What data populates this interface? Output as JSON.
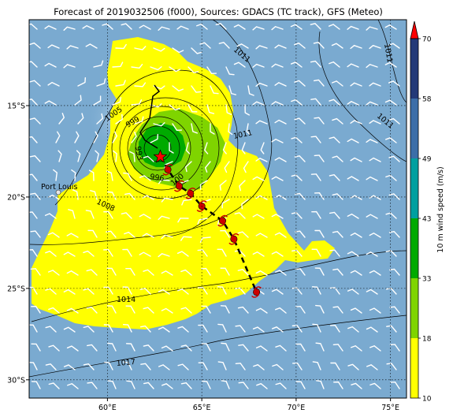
{
  "title": "Forecast of 2019032506 (f000), Sources: GDACS (TC track), GFS (Meteo)",
  "lon_ticks": [
    {
      "label": "60°E",
      "lon": 60
    },
    {
      "label": "65°E",
      "lon": 65
    },
    {
      "label": "70°E",
      "lon": 70
    },
    {
      "label": "75°E",
      "lon": 75
    }
  ],
  "lat_ticks": [
    {
      "label": "15°S",
      "lat": -15
    },
    {
      "label": "20°S",
      "lat": -20
    },
    {
      "label": "25°S",
      "lat": -25
    },
    {
      "label": "30°S",
      "lat": -30
    }
  ],
  "place_label": "Port Louis",
  "isobar_labels": [
    "1011",
    "1011",
    "1011",
    "1005",
    "999",
    "993",
    "996",
    "1011",
    "1008",
    "1014",
    "1017",
    "100"
  ],
  "colorbar": {
    "label": "10 m wind speed (m/s)",
    "tick_labels": [
      "10",
      "18",
      "33",
      "43",
      "49",
      "58",
      "70"
    ],
    "bands": [
      {
        "from": 10,
        "to": 18,
        "color": "#ffff00"
      },
      {
        "from": 18,
        "to": 33,
        "color": "#7fd400"
      },
      {
        "from": 33,
        "to": 43,
        "color": "#00aa00"
      },
      {
        "from": 43,
        "to": 49,
        "color": "#00a0a0"
      },
      {
        "from": 49,
        "to": 58,
        "color": "#3c6ea8"
      },
      {
        "from": 58,
        "to": 70,
        "color": "#243a78"
      }
    ],
    "extend_color": "#ff0000"
  },
  "colors": {
    "ocean": "#7aaad0",
    "yellow_zone": "#ffff00",
    "green_light": "#7fd400",
    "green_dark": "#00aa00",
    "track_marker": "#cc0000",
    "current_position": "#ff0000"
  },
  "track": [
    {
      "lon": 62.4,
      "lat": -14.6
    },
    {
      "lon": 62.2,
      "lat": -15.6
    },
    {
      "lon": 61.6,
      "lat": -16.5
    },
    {
      "lon": 62.0,
      "lat": -17.2
    },
    {
      "lon": 62.8,
      "lat": -17.8
    },
    {
      "lon": 63.2,
      "lat": -18.5
    },
    {
      "lon": 63.8,
      "lat": -19.4
    },
    {
      "lon": 64.4,
      "lat": -19.8
    },
    {
      "lon": 65.0,
      "lat": -20.5
    },
    {
      "lon": 66.1,
      "lat": -21.3
    },
    {
      "lon": 66.7,
      "lat": -22.3
    },
    {
      "lon": 67.9,
      "lat": -25.2
    }
  ],
  "current_position": {
    "lon": 62.8,
    "lat": -17.8
  },
  "forecast_positions": [
    {
      "lon": 63.2,
      "lat": -18.5
    },
    {
      "lon": 63.8,
      "lat": -19.4
    },
    {
      "lon": 64.4,
      "lat": -19.8
    },
    {
      "lon": 65.0,
      "lat": -20.5
    },
    {
      "lon": 66.1,
      "lat": -21.3
    },
    {
      "lon": 66.7,
      "lat": -22.3
    },
    {
      "lon": 67.9,
      "lat": -25.2
    }
  ]
}
